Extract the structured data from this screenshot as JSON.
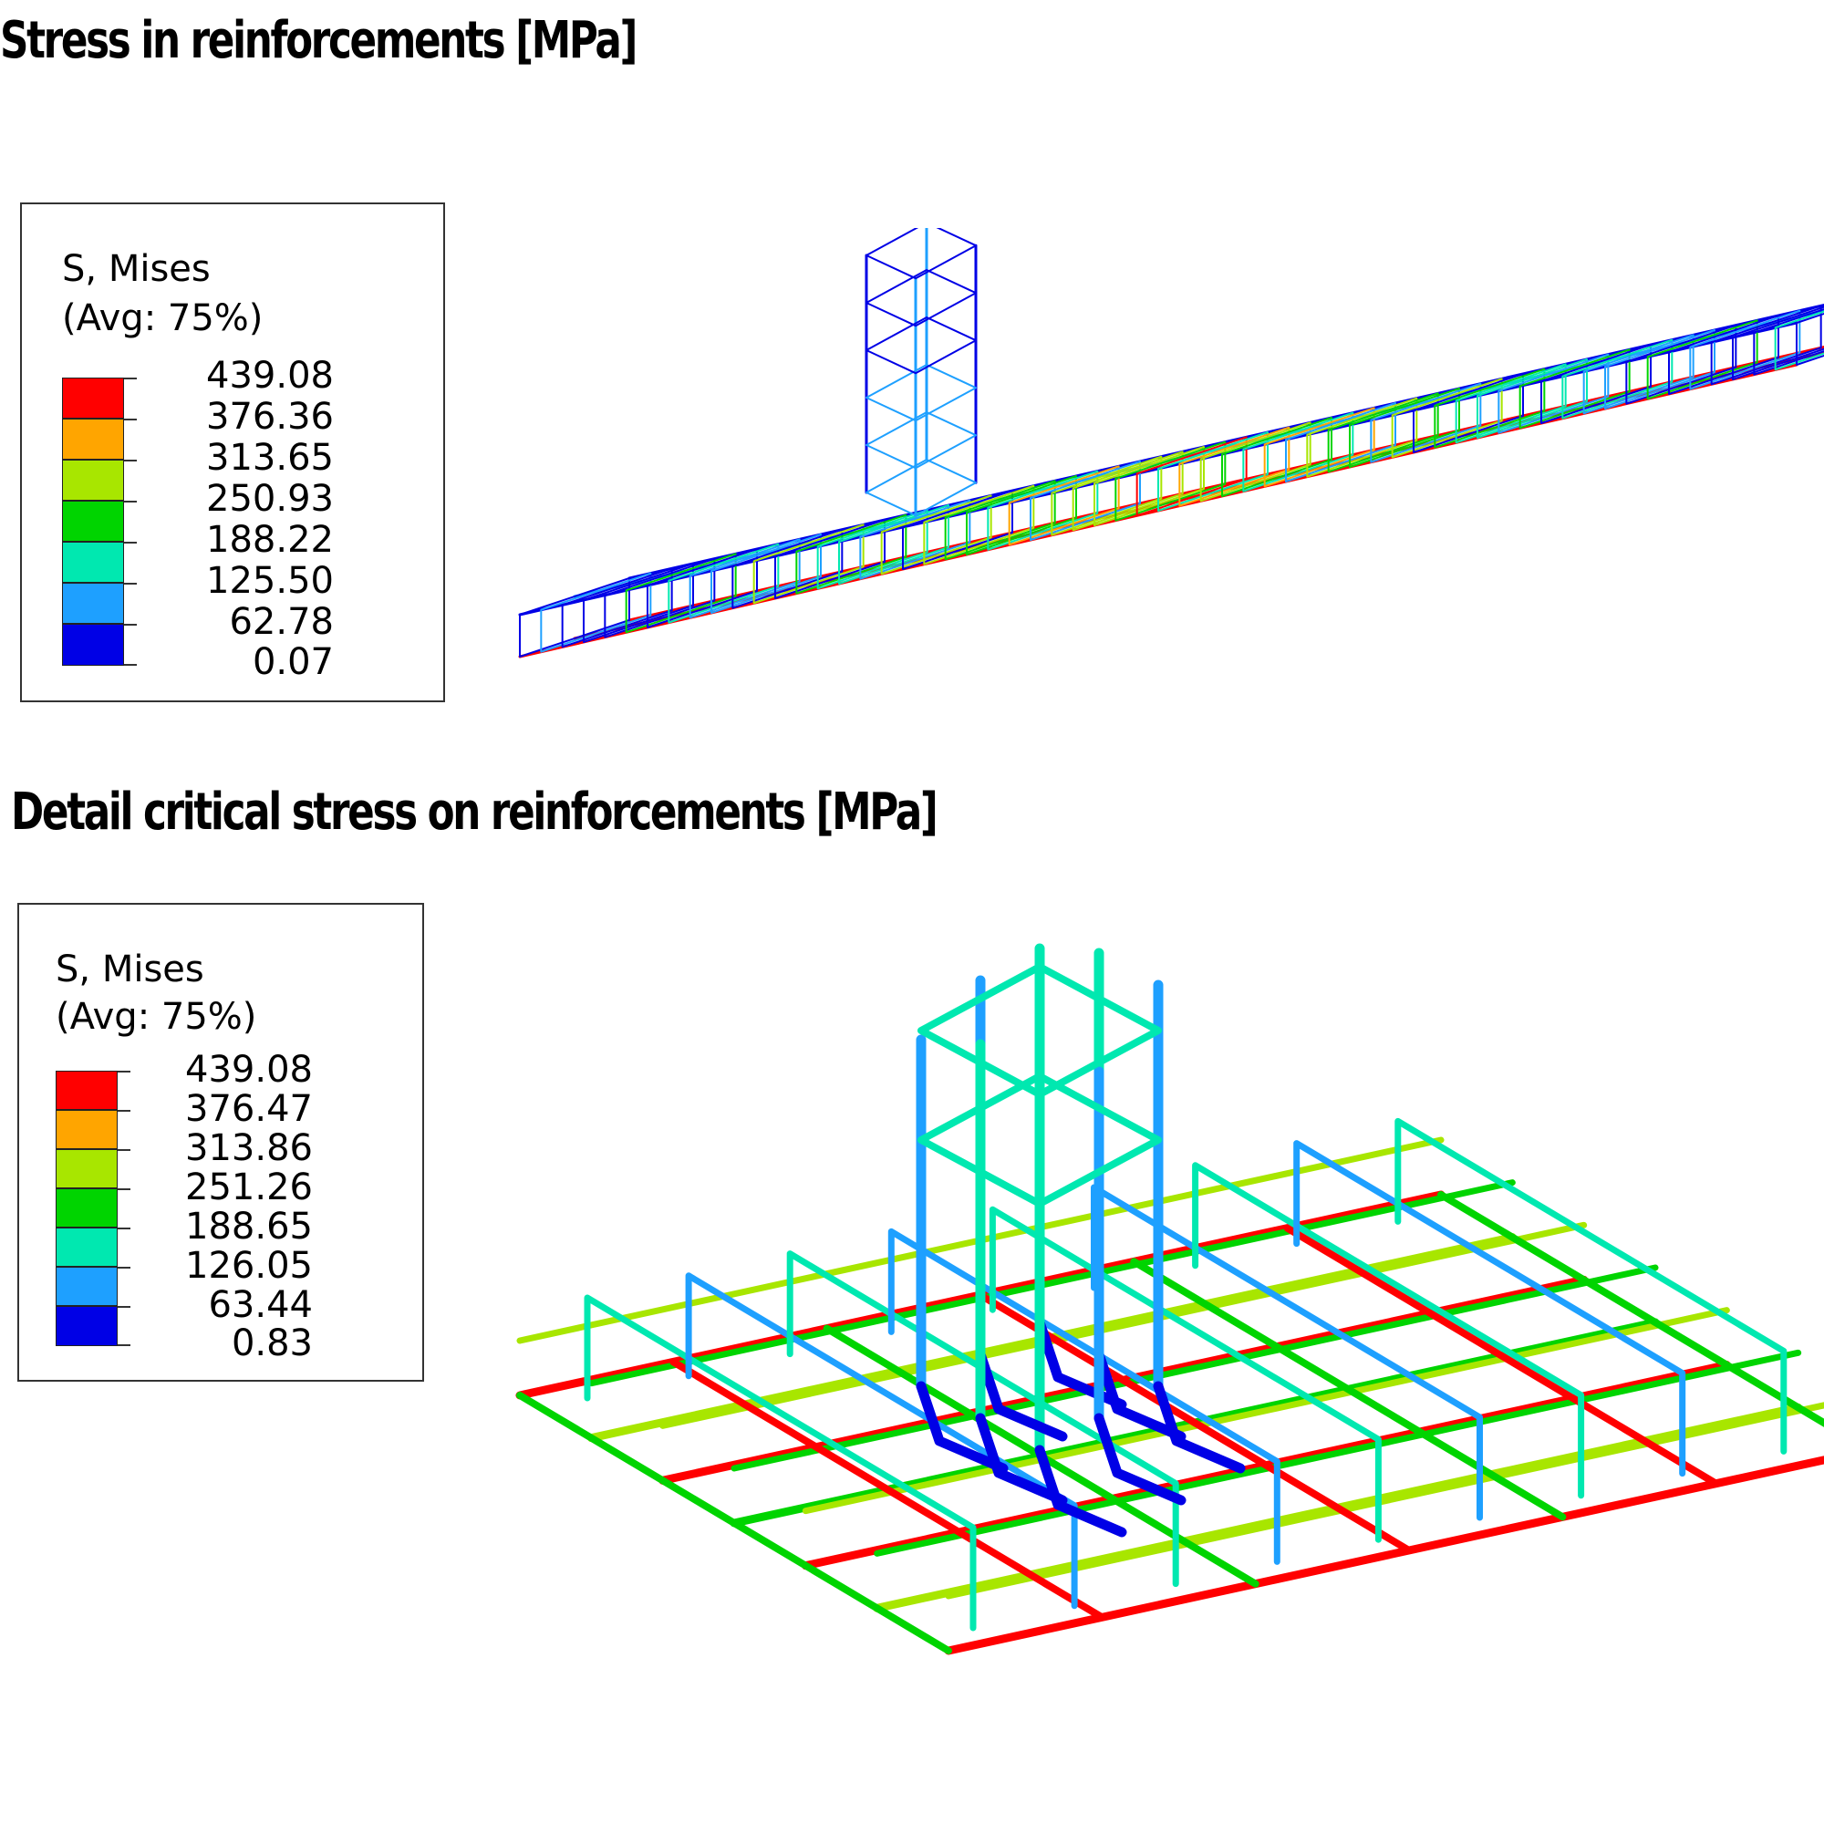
{
  "titles": {
    "top": "Stress in reinforcements [MPa]",
    "bottom": "Detail critical stress on reinforcements [MPa]"
  },
  "legend_top": {
    "title": "S, Mises",
    "averaging": "(Avg: 75%)",
    "values": [
      "439.08",
      "376.36",
      "313.65",
      "250.93",
      "188.22",
      "125.50",
      "62.78",
      "0.07"
    ]
  },
  "legend_bottom": {
    "title": "S, Mises",
    "averaging": "(Avg: 75%)",
    "values": [
      "439.08",
      "376.47",
      "313.86",
      "251.26",
      "188.65",
      "126.05",
      "63.44",
      "0.83"
    ]
  },
  "colors": {
    "band_red": "#ff0000",
    "band_orange": "#ffa500",
    "band_yellowgreen": "#a8e600",
    "band_green": "#00d400",
    "band_cyan": "#00e8b0",
    "band_lightblue": "#1ea0ff",
    "band_blue": "#0000e6"
  }
}
